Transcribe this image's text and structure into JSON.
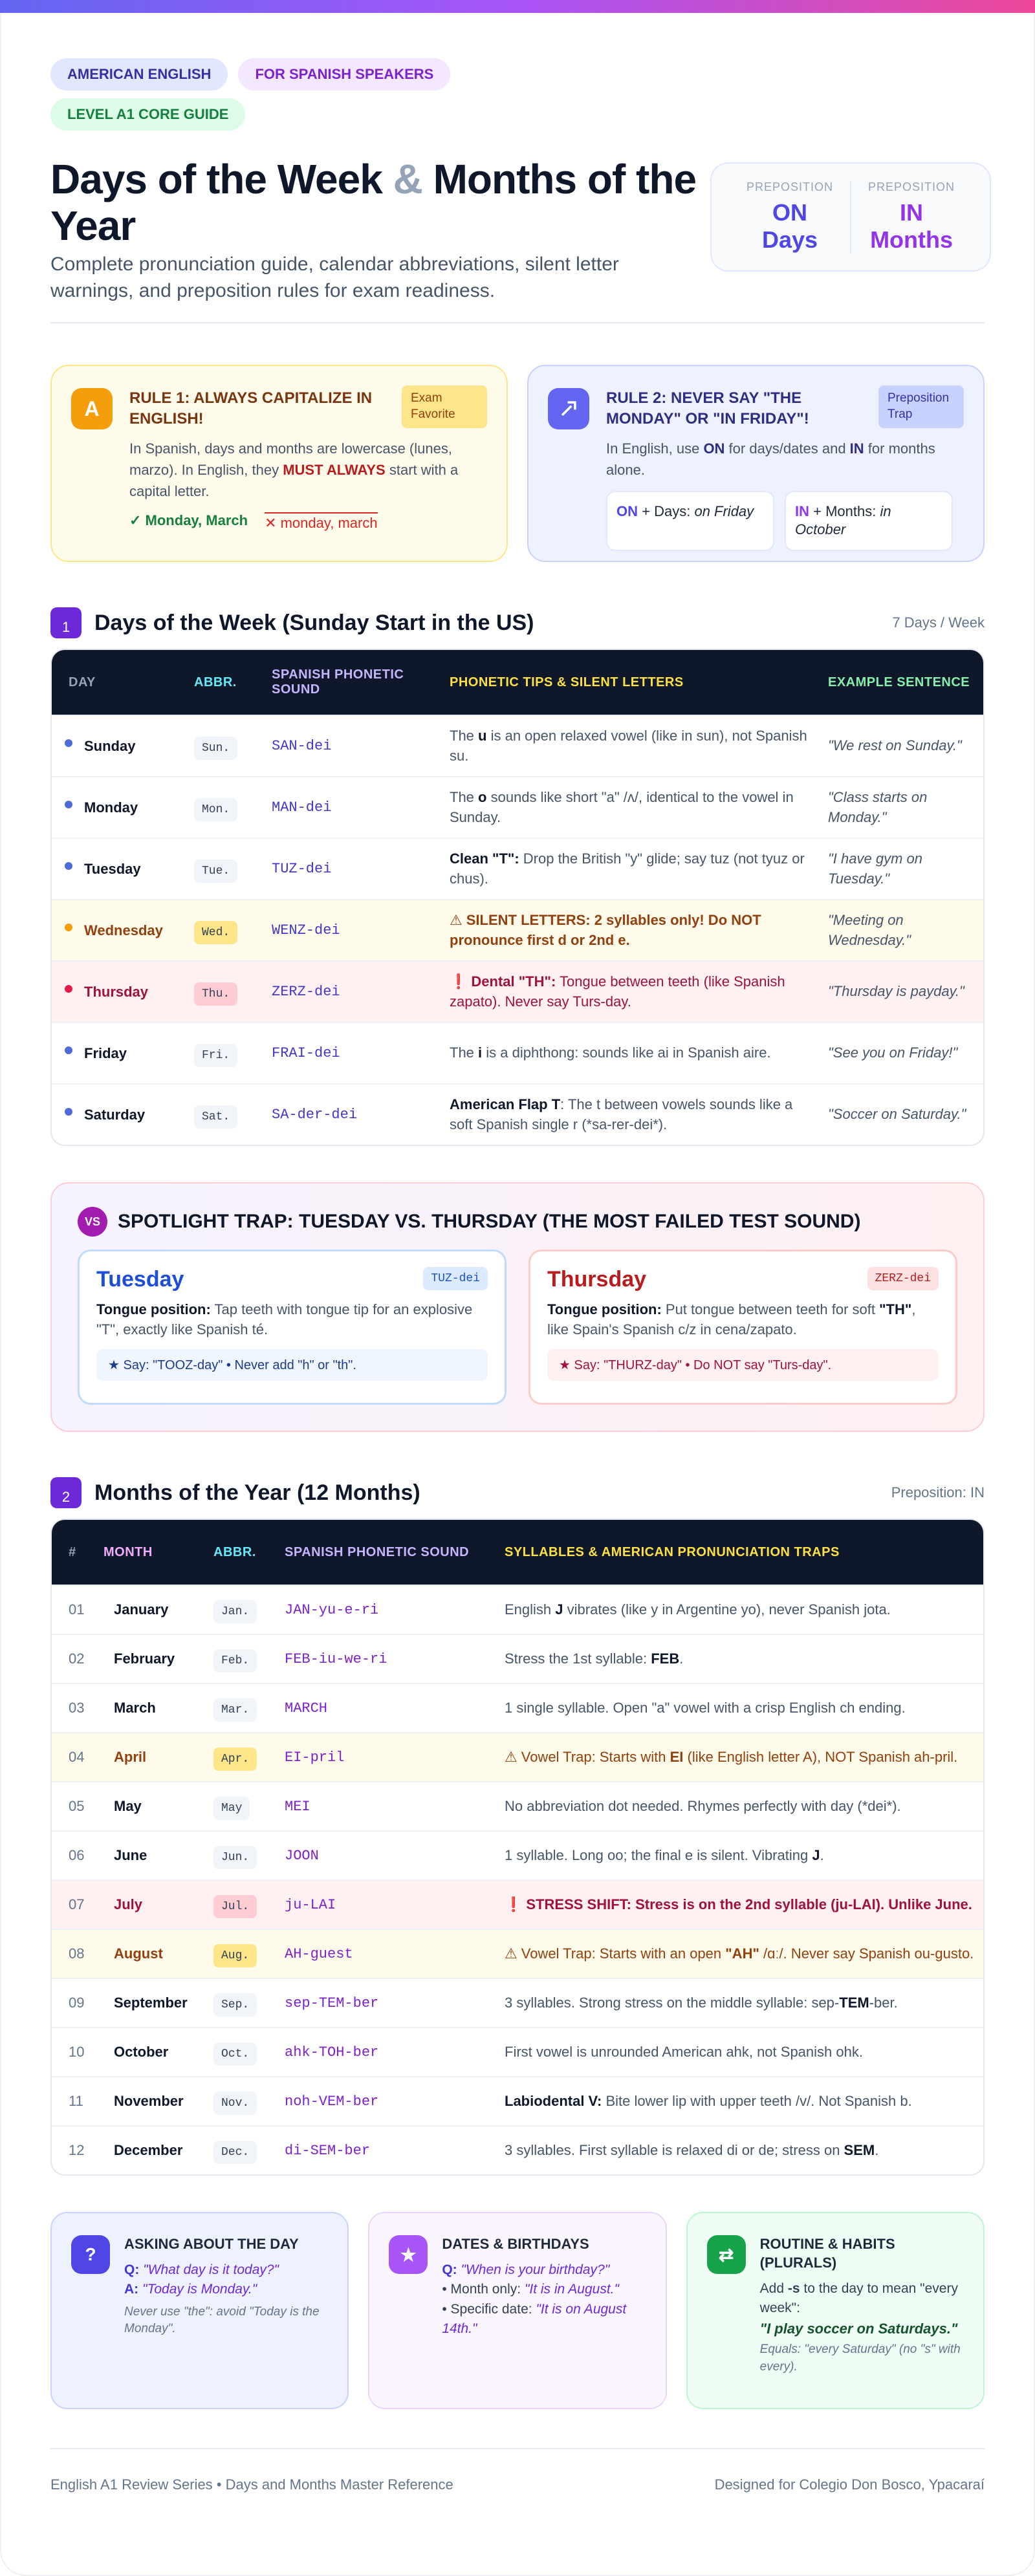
{
  "header": {
    "badges": [
      "AMERICAN ENGLISH",
      "FOR SPANISH SPEAKERS",
      "LEVEL A1 CORE GUIDE"
    ],
    "title": [
      "Days of the Week",
      "&",
      "Months of the Year"
    ],
    "subtitle": "Complete pronunciation guide, calendar abbreviations, silent letter warnings, and preposition rules for exam readiness.",
    "prepositions": [
      {
        "label": "PREPOSITION",
        "value": "ON Days"
      },
      {
        "label": "PREPOSITION",
        "value": "IN Months"
      }
    ]
  },
  "rules": [
    {
      "icon": "A",
      "title": "RULE 1: ALWAYS CAPITALIZE IN ENGLISH!",
      "tag": "Exam Favorite",
      "body": [
        {
          "text": "In Spanish, days and months are lowercase (lunes, marzo). In English, they "
        },
        {
          "text": "MUST ALWAYS",
          "strong": true
        },
        {
          "text": " start with a capital letter."
        }
      ],
      "correct": "Monday, March",
      "wrong": "monday, march"
    },
    {
      "title": "RULE 2: NEVER SAY \"THE MONDAY\" OR \"IN FRIDAY\"!",
      "tag": "Preposition Trap",
      "body": [
        {
          "text": "In English, use "
        },
        {
          "text": "ON",
          "strong": true
        },
        {
          "text": " for days/dates and "
        },
        {
          "text": "IN",
          "strong": true
        },
        {
          "text": " for months alone."
        }
      ],
      "examples": [
        {
          "prep": "ON",
          "label": "+ Days:",
          "example": "on Friday"
        },
        {
          "prep": "IN",
          "label": "+ Months:",
          "example": "in October"
        }
      ]
    }
  ],
  "days": {
    "number": "1",
    "heading": "Days of the Week (Sunday Start in the US)",
    "meta": "7 Days / Week",
    "columns": [
      "DAY",
      "ABBR.",
      "SPANISH PHONETIC SOUND",
      "PHONETIC TIPS & SILENT LETTERS",
      "EXAMPLE SENTENCE"
    ],
    "rows": [
      {
        "day": "Sunday",
        "abbr": "Sun.",
        "sound": "SAN-dei",
        "tip": [
          {
            "text": "The "
          },
          {
            "text": "u",
            "strong": true
          },
          {
            "text": " is an open relaxed vowel (like in sun), not Spanish su."
          }
        ],
        "example": "\"We rest on Sunday.\""
      },
      {
        "day": "Monday",
        "abbr": "Mon.",
        "sound": "MAN-dei",
        "tip": [
          {
            "text": "The "
          },
          {
            "text": "o",
            "strong": true
          },
          {
            "text": " sounds like short \"a\" /ʌ/, identical to the vowel in Sunday."
          }
        ],
        "example": "\"Class starts on Monday.\""
      },
      {
        "day": "Tuesday",
        "abbr": "Tue.",
        "sound": "TUZ-dei",
        "tip": [
          {
            "text": "Clean \"T\":",
            "strong": true
          },
          {
            "text": " Drop the British \"y\" glide; say tuz (not tyuz or chus)."
          }
        ],
        "example": "\"I have gym on Tuesday.\""
      },
      {
        "day": "Wednesday",
        "abbr": "Wed.",
        "sound": "WENZ-dei",
        "tone": "warning",
        "tip": [
          {
            "text": "SILENT LETTERS: 2 syllables only! Do NOT pronounce first d or 2nd e.",
            "strong": true
          }
        ],
        "example": "\"Meeting on Wednesday.\""
      },
      {
        "day": "Thursday",
        "abbr": "Thu.",
        "sound": "ZERZ-dei",
        "tone": "danger",
        "tip": [
          {
            "text": "Dental \"TH\":",
            "strong": true
          },
          {
            "text": " Tongue between teeth (like Spanish zapato). Never say Turs-day."
          }
        ],
        "example": "\"Thursday is payday.\""
      },
      {
        "day": "Friday",
        "abbr": "Fri.",
        "sound": "FRAI-dei",
        "tip": [
          {
            "text": "The "
          },
          {
            "text": "i",
            "strong": true
          },
          {
            "text": " is a diphthong: sounds like ai in Spanish aire."
          }
        ],
        "example": "\"See you on Friday!\""
      },
      {
        "day": "Saturday",
        "abbr": "Sat.",
        "sound": "SA-der-dei",
        "tip": [
          {
            "text": "American Flap T",
            "strong": true
          },
          {
            "text": ": The t between vowels sounds like a soft Spanish single r (*sa-rer-dei*)."
          }
        ],
        "example": "\"Soccer on Saturday.\""
      }
    ]
  },
  "spotlight": {
    "icon": "VS",
    "title": "SPOTLIGHT TRAP: TUESDAY VS. THURSDAY (THE MOST FAILED TEST SOUND)",
    "cards": [
      {
        "name": "Tuesday",
        "sound": "TUZ-dei",
        "position": [
          {
            "text": "Tongue position:",
            "strong": true
          },
          {
            "text": " Tap teeth with tongue tip for an explosive \"T\", exactly like Spanish té."
          }
        ],
        "say": "★ Say: \"TOOZ-day\" • Never add \"h\" or \"th\"."
      },
      {
        "name": "Thursday",
        "sound": "ZERZ-dei",
        "position": [
          {
            "text": "Tongue position:",
            "strong": true
          },
          {
            "text": " Put tongue between teeth for soft "
          },
          {
            "text": "\"TH\"",
            "strong": true
          },
          {
            "text": ", like Spain's Spanish c/z in cena/zapato."
          }
        ],
        "say": "★ Say: \"THURZ-day\" • Do NOT say \"Turs-day\"."
      }
    ]
  },
  "months": {
    "number": "2",
    "heading": "Months of the Year (12 Months)",
    "meta": "Preposition: IN",
    "columns": [
      "#",
      "MONTH",
      "ABBR.",
      "SPANISH PHONETIC SOUND",
      "SYLLABLES & AMERICAN PRONUNCIATION TRAPS"
    ],
    "rows": [
      {
        "num": "01",
        "month": "January",
        "abbr": "Jan.",
        "sound": "JAN-yu-e-ri",
        "tip": [
          {
            "text": "English "
          },
          {
            "text": "J",
            "strong": true
          },
          {
            "text": " vibrates (like y in Argentine yo), never Spanish jota."
          }
        ]
      },
      {
        "num": "02",
        "month": "February",
        "abbr": "Feb.",
        "sound": "FEB-iu-we-ri",
        "tip": [
          {
            "text": "Stress the 1st syllable: "
          },
          {
            "text": "FEB",
            "strong": true
          },
          {
            "text": "."
          }
        ]
      },
      {
        "num": "03",
        "month": "March",
        "abbr": "Mar.",
        "sound": "MARCH",
        "tip": [
          {
            "text": "1 single syllable. Open \"a\" vowel with a crisp English ch ending."
          }
        ]
      },
      {
        "num": "04",
        "month": "April",
        "abbr": "Apr.",
        "sound": "EI-pril",
        "tone": "warning",
        "tip": [
          {
            "text": "Vowel Trap: Starts with "
          },
          {
            "text": "EI",
            "strong": true
          },
          {
            "text": " (like English letter A), NOT Spanish ah-pril."
          }
        ]
      },
      {
        "num": "05",
        "month": "May",
        "abbr": "May",
        "sound": "MEI",
        "tip": [
          {
            "text": "No abbreviation dot needed. Rhymes perfectly with day (*dei*)."
          }
        ]
      },
      {
        "num": "06",
        "month": "June",
        "abbr": "Jun.",
        "sound": "JOON",
        "tip": [
          {
            "text": "1 syllable. Long oo; the final e is silent. Vibrating "
          },
          {
            "text": "J",
            "strong": true
          },
          {
            "text": "."
          }
        ]
      },
      {
        "num": "07",
        "month": "July",
        "abbr": "Jul.",
        "sound": "ju-LAI",
        "tone": "danger",
        "tip": [
          {
            "text": "STRESS SHIFT: Stress is on the 2nd syllable (ju-LAI). Unlike June.",
            "strong": true
          }
        ]
      },
      {
        "num": "08",
        "month": "August",
        "abbr": "Aug.",
        "sound": "AH-guest",
        "tone": "warning",
        "tip": [
          {
            "text": "Vowel Trap: Starts with an open "
          },
          {
            "text": "\"AH\"",
            "strong": true
          },
          {
            "text": " /ɑː/. Never say Spanish ou-gusto."
          }
        ]
      },
      {
        "num": "09",
        "month": "September",
        "abbr": "Sep.",
        "sound": "sep-TEM-ber",
        "tip": [
          {
            "text": "3 syllables. Strong stress on the middle syllable: sep-"
          },
          {
            "text": "TEM",
            "strong": true
          },
          {
            "text": "-ber."
          }
        ]
      },
      {
        "num": "10",
        "month": "October",
        "abbr": "Oct.",
        "sound": "ahk-TOH-ber",
        "tip": [
          {
            "text": "First vowel is unrounded American ahk, not Spanish ohk."
          }
        ]
      },
      {
        "num": "11",
        "month": "November",
        "abbr": "Nov.",
        "sound": "noh-VEM-ber",
        "tip": [
          {
            "text": "Labiodental V:",
            "strong": true
          },
          {
            "text": " Bite lower lip with upper teeth /v/. Not Spanish b."
          }
        ]
      },
      {
        "num": "12",
        "month": "December",
        "abbr": "Dec.",
        "sound": "di-SEM-ber",
        "tip": [
          {
            "text": "3 syllables. First syllable is relaxed di or de; stress on "
          },
          {
            "text": "SEM",
            "strong": true
          },
          {
            "text": "."
          }
        ]
      }
    ]
  },
  "cards": [
    {
      "icon": "?",
      "title": "ASKING ABOUT THE DAY",
      "lines": [
        {
          "label": "Q:",
          "text": "\"What day is it today?\""
        },
        {
          "label": "A:",
          "text": "\"Today is Monday.\""
        }
      ],
      "note": "Never use \"the\": avoid \"Today is the Monday\"."
    },
    {
      "icon": "★",
      "title": "DATES & BIRTHDAYS",
      "lines": [
        {
          "label": "Q:",
          "text": "\"When is your birthday?\""
        }
      ],
      "bullets": [
        {
          "label": "Month only:",
          "text": "\"It is in August.\""
        },
        {
          "label": "Specific date:",
          "text": "\"It is on August 14th.\""
        }
      ]
    },
    {
      "icon": "⇄",
      "title": "ROUTINE & HABITS (PLURALS)",
      "body": [
        {
          "text": "Add "
        },
        {
          "text": "-s",
          "strong": true
        },
        {
          "text": " to the day to mean "
        },
        {
          "text": "\"every week\":"
        }
      ],
      "quote": "\"I play soccer on Saturdays.\"",
      "note": "Equals: \"every Saturday\" (no \"s\" with every)."
    }
  ],
  "footer": {
    "left": "English A1 Review Series • Days and Months Master Reference",
    "right": "Designed for Colegio Don Bosco, Ypacaraí"
  }
}
